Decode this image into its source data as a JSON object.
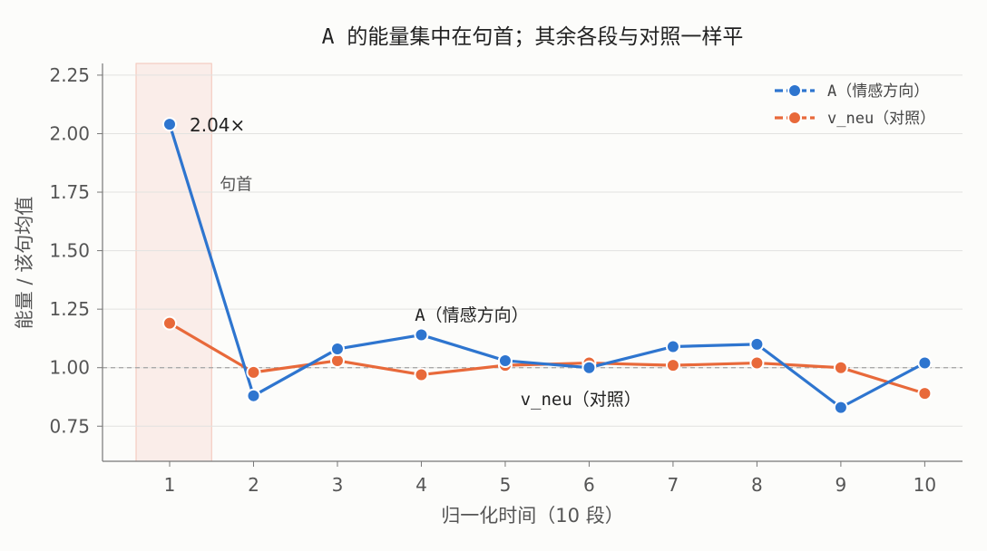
{
  "chart_data": {
    "type": "line",
    "title": "A 的能量集中在句首；其余各段与对照一样平",
    "xlabel": "归一化时间（10 段）",
    "ylabel": "能量 / 该句均值",
    "x": [
      1,
      2,
      3,
      4,
      5,
      6,
      7,
      8,
      9,
      10
    ],
    "xticks": [
      "1",
      "2",
      "3",
      "4",
      "5",
      "6",
      "7",
      "8",
      "9",
      "10"
    ],
    "ylim": [
      0.6,
      2.3
    ],
    "xlim": [
      0.2,
      10.45
    ],
    "yticks": [
      {
        "value": 0.75,
        "label": "0.75"
      },
      {
        "value": 1.0,
        "label": "1.00"
      },
      {
        "value": 1.25,
        "label": "1.25"
      },
      {
        "value": 1.5,
        "label": "1.50"
      },
      {
        "value": 1.75,
        "label": "1.75"
      },
      {
        "value": 2.0,
        "label": "2.00"
      },
      {
        "value": 2.25,
        "label": "2.25"
      }
    ],
    "grid": "horizontal",
    "legend_position": "top-right",
    "reference_line": 1.0,
    "highlight_band": {
      "from": 0.6,
      "to": 1.5,
      "label": "句首",
      "color": "#f8dcd4"
    },
    "series": [
      {
        "name": "A（情感方向）",
        "color": "#2e75cf",
        "style": "solid",
        "values": [
          2.04,
          0.88,
          1.08,
          1.14,
          1.03,
          1.0,
          1.09,
          1.1,
          0.83,
          1.02
        ],
        "annotation": {
          "text": "A（情感方向）",
          "x": 4.6,
          "y": 1.2
        }
      },
      {
        "name": "v_neu（对照）",
        "color": "#e8693a",
        "style": "dashed-legend",
        "values": [
          1.19,
          0.98,
          1.03,
          0.97,
          1.01,
          1.02,
          1.01,
          1.02,
          1.0,
          0.89
        ],
        "annotation": {
          "text": "v_neu（对照）",
          "x": 5.9,
          "y": 0.84
        }
      }
    ],
    "data_labels": [
      {
        "text": "2.04×",
        "x": 1,
        "y": 2.04
      }
    ]
  }
}
